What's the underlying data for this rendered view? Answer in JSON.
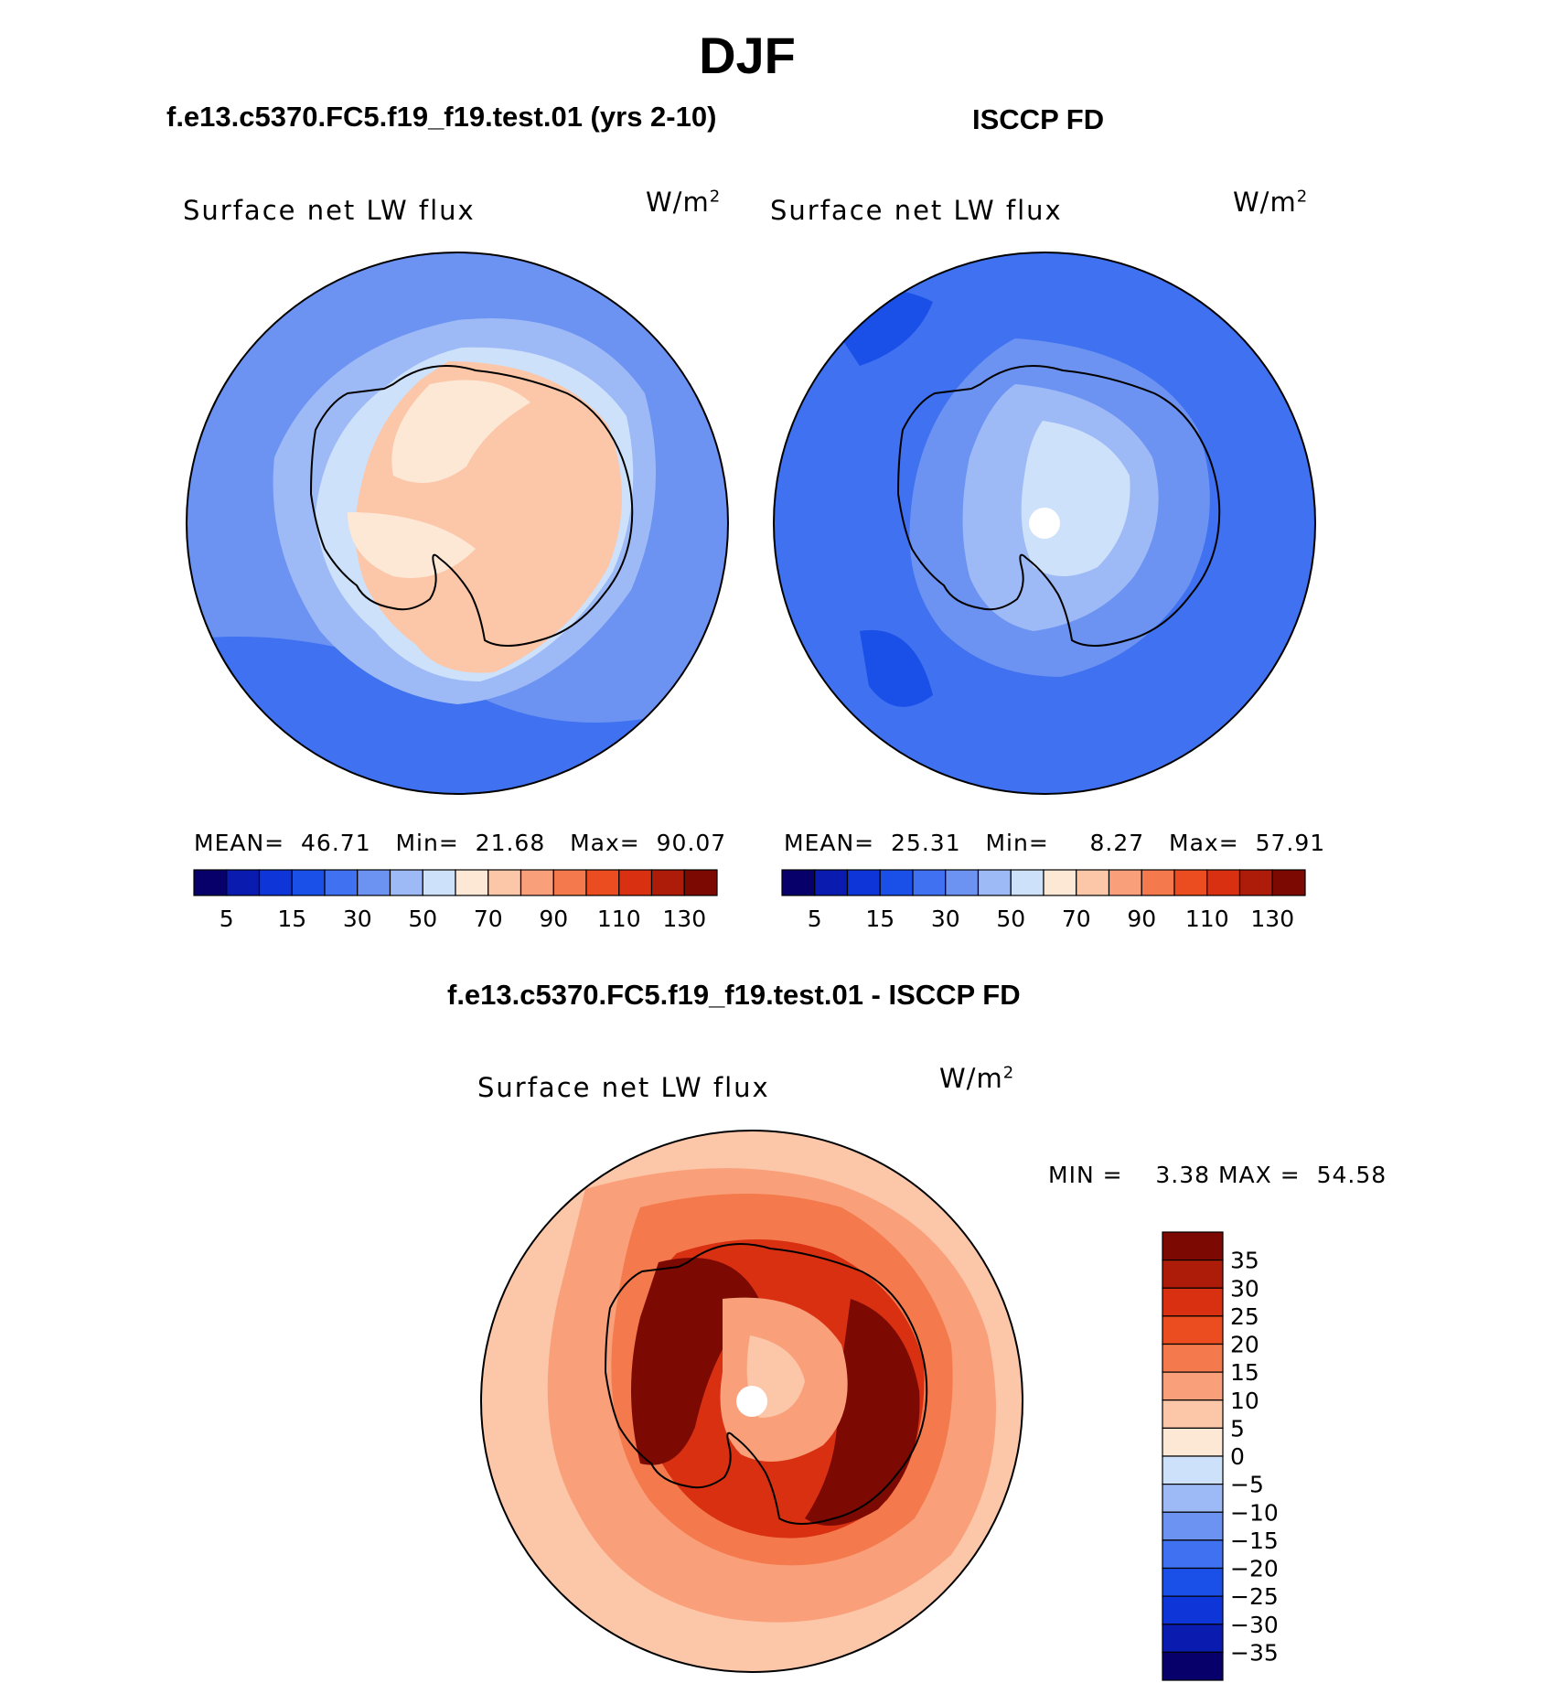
{
  "title": "DJF",
  "panels": {
    "left": {
      "subtitle": "f.e13.c5370.FC5.f19_f19.test.01 (yrs 2-10)",
      "label": "Surface net LW flux",
      "unit_base": "W/m",
      "unit_exp": "2",
      "mean_label": "MEAN=",
      "mean": "46.71",
      "min_label": "Min=",
      "min": "21.68",
      "max_label": "Max=",
      "max": "90.07"
    },
    "right": {
      "subtitle": "ISCCP FD",
      "label": "Surface net LW flux",
      "unit_base": "W/m",
      "unit_exp": "2",
      "mean_label": "MEAN=",
      "mean": "25.31",
      "min_label": "Min=",
      "min": "8.27",
      "max_label": "Max=",
      "max": "57.91"
    },
    "diff": {
      "subtitle": "f.e13.c5370.FC5.f19_f19.test.01 - ISCCP FD",
      "label": "Surface net LW flux",
      "unit_base": "W/m",
      "unit_exp": "2",
      "min_label": "MIN =",
      "min": "3.38",
      "max_label": "MAX =",
      "max": "54.58"
    }
  },
  "chart_data": [
    {
      "type": "heatmap",
      "projection": "south polar stereographic",
      "field": "Surface net LW flux",
      "units": "W/m2",
      "mean": 46.71,
      "min": 21.68,
      "max": 90.07,
      "colorbar_ticks": [
        5,
        15,
        30,
        50,
        70,
        90,
        110,
        130
      ],
      "levels": [
        5,
        10,
        15,
        20,
        30,
        40,
        50,
        60,
        70,
        80,
        90,
        100,
        110,
        120,
        130
      ]
    },
    {
      "type": "heatmap",
      "projection": "south polar stereographic",
      "field": "Surface net LW flux",
      "units": "W/m2",
      "mean": 25.31,
      "min": 8.27,
      "max": 57.91,
      "colorbar_ticks": [
        5,
        15,
        30,
        50,
        70,
        90,
        110,
        130
      ],
      "levels": [
        5,
        10,
        15,
        20,
        30,
        40,
        50,
        60,
        70,
        80,
        90,
        100,
        110,
        120,
        130
      ]
    },
    {
      "type": "heatmap",
      "projection": "south polar stereographic",
      "field": "Surface net LW flux difference",
      "units": "W/m2",
      "min": 3.38,
      "max": 54.58,
      "colorbar_ticks": [
        35,
        30,
        25,
        20,
        15,
        10,
        5,
        0,
        -5,
        -10,
        -15,
        -20,
        -25,
        -30,
        -35
      ]
    }
  ],
  "palette": {
    "blues_reds_16": [
      "#08006a",
      "#0a1cb0",
      "#0d35d8",
      "#1a4fe8",
      "#3f71f0",
      "#6c93f2",
      "#9ebaf6",
      "#cde1fb",
      "#fde8d6",
      "#fcc6a8",
      "#f9a07a",
      "#f47a4e",
      "#eb4c20",
      "#d93012",
      "#ad1c08",
      "#7d0a02"
    ],
    "diff_16": [
      "#7d0a02",
      "#ad1c08",
      "#d93012",
      "#eb4c20",
      "#f47a4e",
      "#f9a07a",
      "#fcc6a8",
      "#fde8d6",
      "#cde1fb",
      "#9ebaf6",
      "#6c93f2",
      "#3f71f0",
      "#1a4fe8",
      "#0d35d8",
      "#0a1cb0",
      "#08006a"
    ]
  }
}
